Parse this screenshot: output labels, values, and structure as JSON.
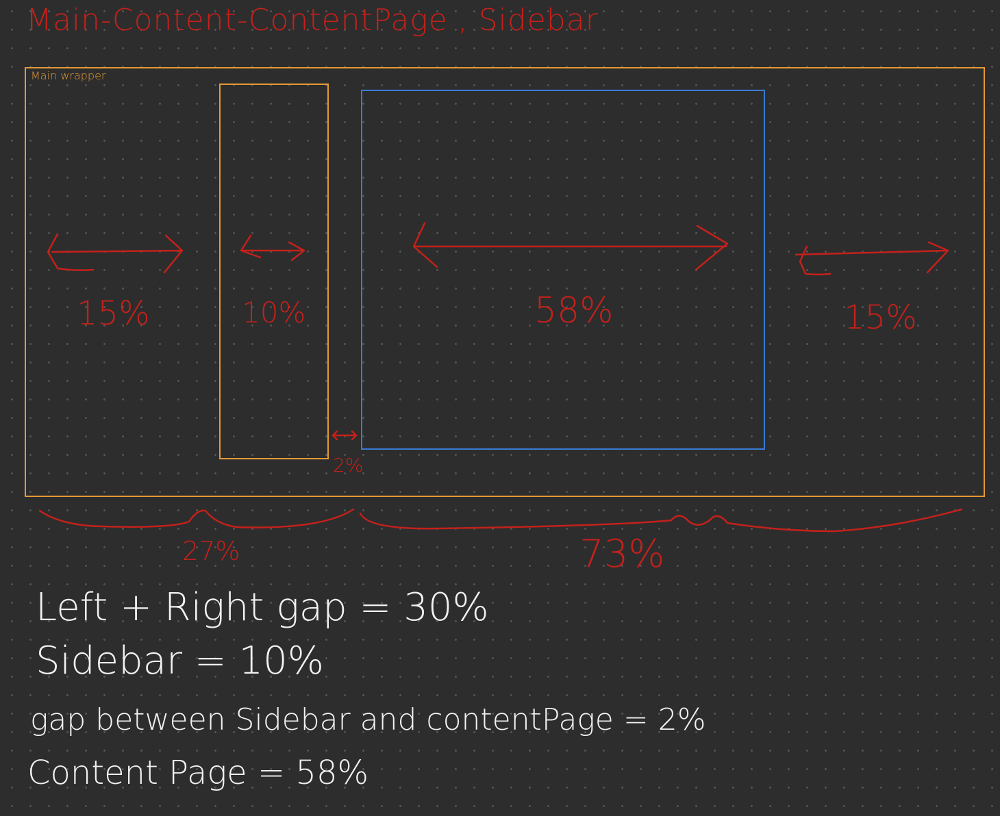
{
  "title": "Main-Content-ContentPage , Sidebar",
  "main_wrapper_label": "Main wrapper",
  "columns": {
    "left_gap": "15%",
    "sidebar": "10%",
    "content_page": "58%",
    "right_gap": "15%",
    "sidebar_content_gap": "2%"
  },
  "groups": {
    "left": "27%",
    "right": "73%"
  },
  "notes": {
    "gaps": "Left + Right gap = 30%",
    "sidebar": "Sidebar = 10%",
    "between": "gap between Sidebar and contentPage = 2%",
    "content": "Content Page = 58%"
  },
  "colors": {
    "background": "#2d2d2d",
    "annotation_red": "#c4211b",
    "wrapper_orange": "#e49a35",
    "content_blue": "#3a7bd5",
    "note_white": "#f2f2f2"
  }
}
